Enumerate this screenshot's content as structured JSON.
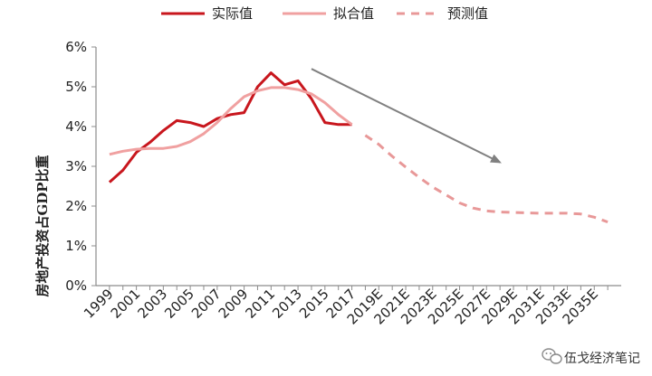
{
  "chart_data": {
    "type": "line",
    "ylabel": "房地产投资占GDP比重",
    "y_unit": "%",
    "ylim": [
      0,
      6
    ],
    "y_ticks": [
      "0%",
      "1%",
      "2%",
      "3%",
      "4%",
      "5%",
      "6%"
    ],
    "x_ticks": [
      "1999",
      "2001",
      "2003",
      "2005",
      "2007",
      "2009",
      "2011",
      "2013",
      "2015",
      "2017",
      "2019E",
      "2021E",
      "2023E",
      "2025E",
      "2027E",
      "2029E",
      "2031E",
      "2033E",
      "2035E"
    ],
    "legend_position": "top",
    "grid": false,
    "series": [
      {
        "name": "实际值",
        "style": "solid",
        "color": "#c8161d",
        "x": [
          1999,
          2000,
          2001,
          2002,
          2003,
          2004,
          2005,
          2006,
          2007,
          2008,
          2009,
          2010,
          2011,
          2012,
          2013,
          2014,
          2015,
          2016,
          2017
        ],
        "values": [
          2.6,
          2.9,
          3.35,
          3.6,
          3.9,
          4.15,
          4.1,
          4.0,
          4.2,
          4.3,
          4.35,
          5.0,
          5.35,
          5.05,
          5.15,
          4.7,
          4.1,
          4.05,
          4.05
        ]
      },
      {
        "name": "拟合值",
        "style": "solid",
        "color": "#f0a0a0",
        "x": [
          1999,
          2000,
          2001,
          2002,
          2003,
          2004,
          2005,
          2006,
          2007,
          2008,
          2009,
          2010,
          2011,
          2012,
          2013,
          2014,
          2015,
          2016,
          2017
        ],
        "values": [
          3.3,
          3.38,
          3.43,
          3.45,
          3.45,
          3.5,
          3.62,
          3.82,
          4.1,
          4.45,
          4.75,
          4.9,
          4.98,
          4.98,
          4.93,
          4.82,
          4.6,
          4.3,
          4.05
        ]
      },
      {
        "name": "预测值",
        "style": "dashed",
        "color": "#e89898",
        "x": [
          2018,
          2019,
          2020,
          2021,
          2022,
          2023,
          2024,
          2025,
          2026,
          2027,
          2028,
          2029,
          2030,
          2031,
          2032,
          2033,
          2034,
          2035,
          2036
        ],
        "values": [
          3.78,
          3.55,
          3.25,
          2.98,
          2.72,
          2.48,
          2.28,
          2.08,
          1.95,
          1.88,
          1.85,
          1.84,
          1.83,
          1.82,
          1.82,
          1.82,
          1.8,
          1.72,
          1.6
        ]
      }
    ],
    "annotations": [
      {
        "type": "arrow",
        "color": "#808080",
        "from": [
          2014,
          5.45
        ],
        "to": [
          2028,
          3.1
        ]
      }
    ]
  },
  "watermark": {
    "text": "伍戈经济笔记",
    "icon": "wechat-icon"
  }
}
